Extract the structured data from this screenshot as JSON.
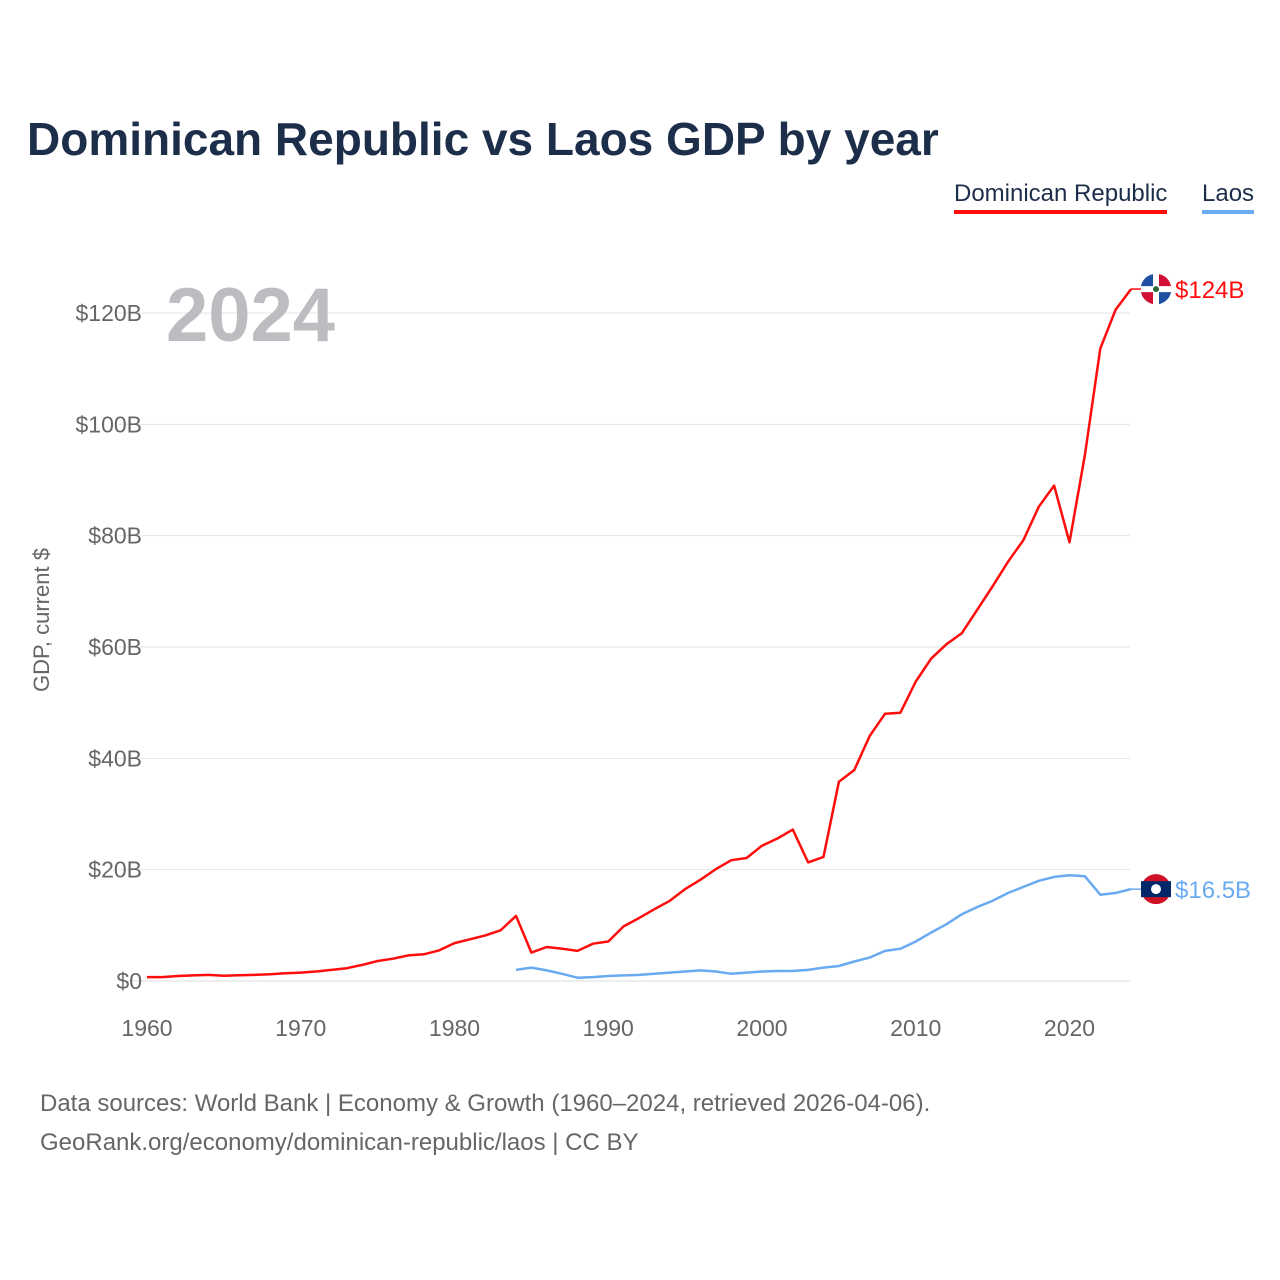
{
  "title": "Dominican Republic vs Laos GDP by year",
  "year_label": "2024",
  "footer": {
    "line1": "Data sources: World Bank | Economy & Growth (1960–2024, retrieved 2026-04-06).",
    "line2": "GeoRank.org/economy/dominican-republic/laos | CC BY"
  },
  "chart_data": {
    "type": "line",
    "title": "Dominican Republic vs Laos GDP by year",
    "ylabel": "GDP, current $",
    "xlabel": "",
    "xlim": [
      1960,
      2024
    ],
    "ylim": [
      0,
      130
    ],
    "x_ticks": [
      1960,
      1970,
      1980,
      1990,
      2000,
      2010,
      2020
    ],
    "x_tick_labels": [
      "1960",
      "1970",
      "1980",
      "1990",
      "2000",
      "2010",
      "2020"
    ],
    "y_ticks": [
      0,
      20,
      40,
      60,
      80,
      100,
      120
    ],
    "y_tick_labels": [
      "$0",
      "$20B",
      "$40B",
      "$60B",
      "$80B",
      "$100B",
      "$120B"
    ],
    "grid": true,
    "legend_placement": "top-right",
    "series": [
      {
        "name": "Dominican Republic",
        "color": "#ff0d0d",
        "end_label": "$124B",
        "start_year": 1960,
        "values": [
          0.7,
          0.7,
          0.9,
          1.0,
          1.1,
          0.95,
          1.05,
          1.1,
          1.2,
          1.4,
          1.5,
          1.7,
          2.0,
          2.3,
          2.9,
          3.6,
          4.0,
          4.6,
          4.8,
          5.5,
          6.8,
          7.5,
          8.2,
          9.1,
          11.7,
          5.1,
          6.1,
          5.8,
          5.4,
          6.7,
          7.1,
          9.8,
          11.3,
          12.9,
          14.4,
          16.5,
          18.2,
          20.1,
          21.7,
          22.1,
          24.3,
          25.6,
          27.2,
          21.3,
          22.3,
          35.8,
          37.9,
          44.0,
          48.0,
          48.2,
          53.8,
          57.9,
          60.5,
          62.5,
          66.7,
          70.9,
          75.3,
          79.2,
          85.2,
          89.0,
          78.8,
          94.5,
          113.6,
          120.6,
          124.3
        ]
      },
      {
        "name": "Laos",
        "color": "#6aaaf0",
        "end_label": "$16.5B",
        "start_year": 1984,
        "values": [
          2.0,
          2.4,
          1.9,
          1.3,
          0.6,
          0.7,
          0.9,
          1.0,
          1.1,
          1.3,
          1.5,
          1.7,
          1.9,
          1.7,
          1.3,
          1.5,
          1.7,
          1.8,
          1.8,
          2.0,
          2.4,
          2.7,
          3.5,
          4.2,
          5.4,
          5.8,
          7.1,
          8.7,
          10.2,
          12.0,
          13.3,
          14.4,
          15.8,
          16.9,
          18.0,
          18.7,
          19.0,
          18.8,
          15.5,
          15.8,
          16.5
        ]
      }
    ]
  }
}
